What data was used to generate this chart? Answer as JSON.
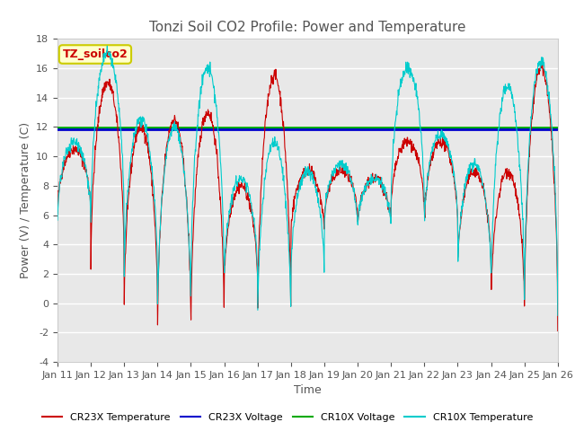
{
  "title": "Tonzi Soil CO2 Profile: Power and Temperature",
  "xlabel": "Time",
  "ylabel": "Power (V) / Temperature (C)",
  "ylim": [
    -4,
    18
  ],
  "yticks": [
    -4,
    -2,
    0,
    2,
    4,
    6,
    8,
    10,
    12,
    14,
    16,
    18
  ],
  "xlim_start": 0,
  "xlim_end": 15,
  "xtick_labels": [
    "Jan 11",
    "Jan 12",
    "Jan 13",
    "Jan 14",
    "Jan 15",
    "Jan 16",
    "Jan 17",
    "Jan 18",
    "Jan 19",
    "Jan 20",
    "Jan 21",
    "Jan 22",
    "Jan 23",
    "Jan 24",
    "Jan 25",
    "Jan 26"
  ],
  "cr23x_voltage_level": 11.85,
  "cr10x_voltage_level": 11.95,
  "legend_box_text": "TZ_soilco2",
  "legend_box_facecolor": "#ffffcc",
  "legend_box_edgecolor": "#cccc00",
  "cr23x_temp_color": "#cc0000",
  "cr23x_voltage_color": "#0000cc",
  "cr10x_voltage_color": "#00aa00",
  "cr10x_temp_color": "#00cccc",
  "fig_facecolor": "#ffffff",
  "plot_bg_color": "#e8e8e8",
  "title_fontsize": 11,
  "axis_label_fontsize": 9,
  "tick_fontsize": 8
}
